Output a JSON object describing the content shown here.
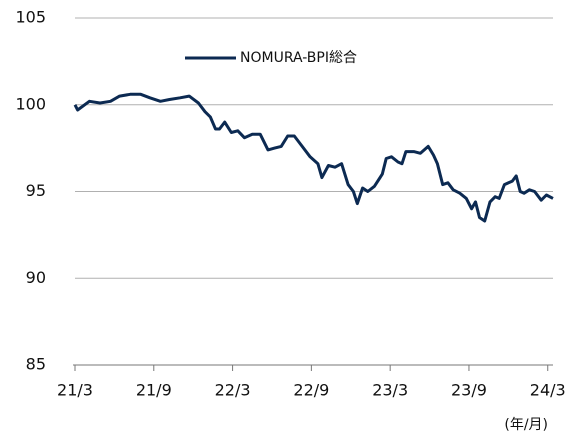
{
  "chart_data": {
    "type": "line",
    "x": [
      0,
      0.2,
      1.1,
      1.9,
      2.7,
      3.4,
      4.2,
      5.0,
      5.7,
      6.5,
      7.2,
      8.0,
      8.7,
      9.4,
      9.9,
      10.3,
      10.7,
      11.0,
      11.4,
      11.9,
      12.4,
      12.9,
      13.5,
      14.1,
      14.7,
      15.2,
      15.7,
      16.2,
      16.7,
      17.3,
      17.9,
      18.5,
      18.8,
      19.3,
      19.8,
      20.3,
      20.8,
      21.2,
      21.5,
      21.9,
      22.3,
      22.8,
      23.4,
      23.7,
      24.1,
      24.6,
      24.9,
      25.2,
      25.8,
      26.3,
      26.9,
      27.3,
      27.6,
      28.0,
      28.4,
      28.8,
      29.3,
      29.8,
      30.2,
      30.5,
      30.8,
      31.2,
      31.6,
      32.0,
      32.3,
      32.7,
      33.3,
      33.6,
      33.9,
      34.2,
      34.6,
      35.0,
      35.5,
      35.9,
      36.4
    ],
    "series": [
      {
        "name": "NOMURA-BPI総合",
        "color": "#0c2a52",
        "values": [
          100.0,
          99.7,
          100.2,
          100.1,
          100.2,
          100.5,
          100.6,
          100.6,
          100.4,
          100.2,
          100.3,
          100.4,
          100.5,
          100.1,
          99.6,
          99.3,
          98.6,
          98.6,
          99.0,
          98.4,
          98.5,
          98.1,
          98.3,
          98.3,
          97.4,
          97.5,
          97.6,
          98.2,
          98.2,
          97.6,
          97.0,
          96.6,
          95.8,
          96.5,
          96.4,
          96.6,
          95.4,
          95.0,
          94.3,
          95.2,
          95.0,
          95.3,
          96.0,
          96.9,
          97.0,
          96.7,
          96.6,
          97.3,
          97.3,
          97.2,
          97.6,
          97.1,
          96.6,
          95.4,
          95.5,
          95.1,
          94.9,
          94.6,
          94.0,
          94.4,
          93.5,
          93.3,
          94.4,
          94.7,
          94.6,
          95.4,
          95.6,
          95.9,
          95.0,
          94.9,
          95.1,
          95.0,
          94.5,
          94.8,
          94.6
        ]
      }
    ],
    "xlim": [
      0,
      36.4
    ],
    "xticks": [
      {
        "value": 0,
        "label": "21/3"
      },
      {
        "value": 6,
        "label": "21/9"
      },
      {
        "value": 12,
        "label": "22/3"
      },
      {
        "value": 18,
        "label": "22/9"
      },
      {
        "value": 24,
        "label": "23/3"
      },
      {
        "value": 30,
        "label": "23/9"
      },
      {
        "value": 36,
        "label": "24/3"
      }
    ],
    "ylim": [
      85,
      105
    ],
    "yticks": [
      85,
      90,
      95,
      100,
      105
    ],
    "grid": true,
    "x_unit_note": "(年/月)"
  }
}
